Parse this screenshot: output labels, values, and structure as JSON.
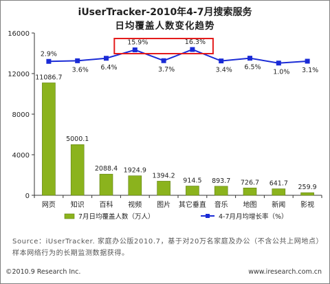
{
  "title": "iUserTracker-2010年4-7月搜索服务",
  "subtitle": "日均覆盖人数变化趋势",
  "source": "Source：iUserTracker. 家庭办公版2010.7，基于对20万名家庭及办公（不含公共上网地点）样本网络行为的长期监测数据获得。",
  "footer": {
    "copyright": "©2010.9 Research Inc.",
    "website": "www.iresearch.com.cn"
  },
  "chart_data": {
    "type": "bar",
    "categories": [
      "网页",
      "知识",
      "百科",
      "视频",
      "图片",
      "其它垂直",
      "音乐",
      "地图",
      "新闻",
      "影视"
    ],
    "series": [
      {
        "name": "7月日均覆盖人数（万人）",
        "type": "bar",
        "values": [
          11086.7,
          5000.1,
          2088.4,
          1924.9,
          1394.2,
          914.5,
          893.7,
          726.7,
          641.7,
          259.9
        ],
        "labels": [
          "11086.7",
          "5000.1",
          "2088.4",
          "1924.9",
          "1394.2",
          "914.5",
          "893.7",
          "726.7",
          "641.7",
          "259.9"
        ],
        "color": "#8bb31d"
      },
      {
        "name": "4-7月月均增长率（%）",
        "type": "line",
        "values": [
          2.9,
          3.6,
          6.4,
          15.9,
          3.7,
          16.3,
          3.4,
          6.5,
          1.0,
          3.1
        ],
        "labels": [
          "2.9%",
          "3.6%",
          "6.4%",
          "15.9%",
          "3.7%",
          "16.3%",
          "3.4%",
          "6.5%",
          "1.0%",
          "3.1%"
        ],
        "color": "#1a2bd6"
      }
    ],
    "y_ticks": [
      "0",
      "4000",
      "8000",
      "12000",
      "16000"
    ],
    "ylim": [
      0,
      16000
    ],
    "highlighted": [
      "15.9%",
      "16.3%"
    ],
    "legend": "bottom"
  }
}
